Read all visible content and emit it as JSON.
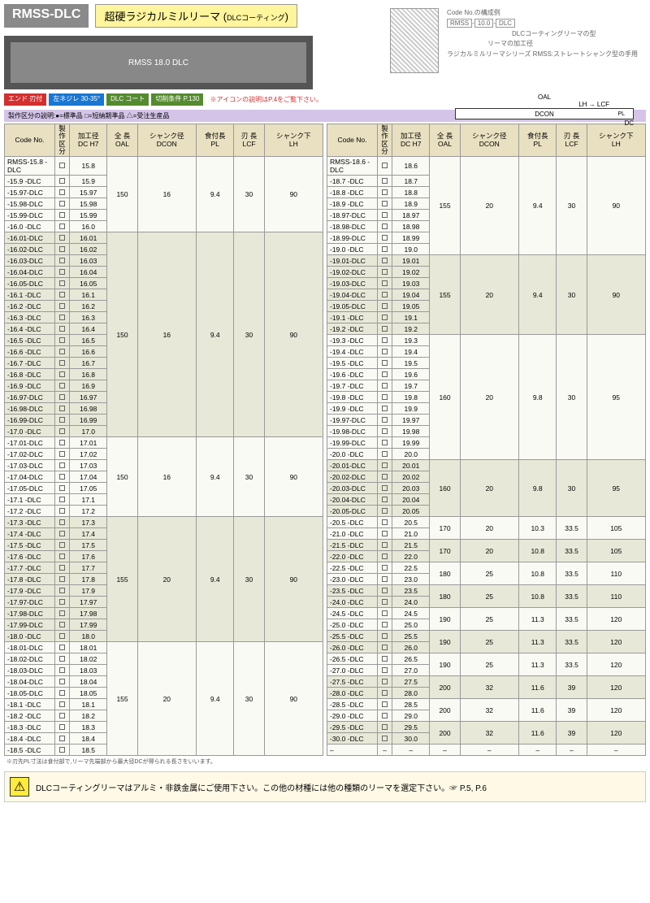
{
  "header": {
    "code": "RMSS-DLC",
    "title": "超硬ラジカルミルリーマ",
    "coating": "DLCコーティング",
    "prod_label": "RMSS 18.0 DLC"
  },
  "diag": {
    "code_ex": "Code No.の構成例",
    "rmss": "RMSS",
    "size": "10.0",
    "dlc": "DLC",
    "n1": "DLCコーティングリーマの型",
    "n2": "リーマの加工径",
    "n3": "ラジカルミルリーマシリーズ RMSS:ストレートシャンク型の手用",
    "oal": "OAL",
    "dcon": "DCON",
    "pl": "PL",
    "dc": "DC",
    "lcf": "LCF",
    "lh": "LH"
  },
  "badges": {
    "b1": "エンド\n刃付",
    "b2": "左ネジレ\n30-35°",
    "b3": "DLC\nコート",
    "b4": "切削条件\nP.130",
    "note": "※アイコンの説明はP.4をご覧下さい。"
  },
  "legend": "製作区分の説明:●=標準品 □=短納期準品 △=受注生産品",
  "th": {
    "code": "Code No.",
    "kubun": "製作\n区分",
    "dc": "加工径\nDC H7",
    "oal": "全 長\nOAL",
    "dcon": "シャンク径\nDCON",
    "pl": "食付長\nPL",
    "lcf": "刃 長\nLCF",
    "lh": "シャンク下\nLH"
  },
  "left_groups": [
    {
      "vals": [
        "150",
        "16",
        "9.4",
        "30",
        "90"
      ],
      "rows": [
        [
          "RMSS-15.8 -DLC",
          "15.8"
        ],
        [
          "-15.9  -DLC",
          "15.9"
        ],
        [
          "-15.97-DLC",
          "15.97"
        ],
        [
          "-15.98-DLC",
          "15.98"
        ],
        [
          "-15.99-DLC",
          "15.99"
        ],
        [
          "-16.0  -DLC",
          "16.0"
        ]
      ]
    },
    {
      "vals": [
        "150",
        "16",
        "9.4",
        "30",
        "90"
      ],
      "rows": [
        [
          "-16.01-DLC",
          "16.01"
        ],
        [
          "-16.02-DLC",
          "16.02"
        ],
        [
          "-16.03-DLC",
          "16.03"
        ],
        [
          "-16.04-DLC",
          "16.04"
        ],
        [
          "-16.05-DLC",
          "16.05"
        ],
        [
          "-16.1  -DLC",
          "16.1"
        ],
        [
          "-16.2  -DLC",
          "16.2"
        ],
        [
          "-16.3  -DLC",
          "16.3"
        ],
        [
          "-16.4  -DLC",
          "16.4"
        ],
        [
          "-16.5  -DLC",
          "16.5"
        ],
        [
          "-16.6  -DLC",
          "16.6"
        ],
        [
          "-16.7  -DLC",
          "16.7"
        ],
        [
          "-16.8  -DLC",
          "16.8"
        ],
        [
          "-16.9  -DLC",
          "16.9"
        ],
        [
          "-16.97-DLC",
          "16.97"
        ],
        [
          "-16.98-DLC",
          "16.98"
        ],
        [
          "-16.99-DLC",
          "16.99"
        ],
        [
          "-17.0  -DLC",
          "17.0"
        ]
      ]
    },
    {
      "vals": [
        "150",
        "16",
        "9.4",
        "30",
        "90"
      ],
      "rows": [
        [
          "-17.01-DLC",
          "17.01"
        ],
        [
          "-17.02-DLC",
          "17.02"
        ],
        [
          "-17.03-DLC",
          "17.03"
        ],
        [
          "-17.04-DLC",
          "17.04"
        ],
        [
          "-17.05-DLC",
          "17.05"
        ],
        [
          "-17.1  -DLC",
          "17.1"
        ],
        [
          "-17.2  -DLC",
          "17.2"
        ]
      ]
    },
    {
      "vals": [
        "155",
        "20",
        "9.4",
        "30",
        "90"
      ],
      "rows": [
        [
          "-17.3  -DLC",
          "17.3"
        ],
        [
          "-17.4  -DLC",
          "17.4"
        ],
        [
          "-17.5  -DLC",
          "17.5"
        ],
        [
          "-17.6  -DLC",
          "17.6"
        ],
        [
          "-17.7  -DLC",
          "17.7"
        ],
        [
          "-17.8  -DLC",
          "17.8"
        ],
        [
          "-17.9  -DLC",
          "17.9"
        ],
        [
          "-17.97-DLC",
          "17.97"
        ],
        [
          "-17.98-DLC",
          "17.98"
        ],
        [
          "-17.99-DLC",
          "17.99"
        ],
        [
          "-18.0  -DLC",
          "18.0"
        ]
      ]
    },
    {
      "vals": [
        "155",
        "20",
        "9.4",
        "30",
        "90"
      ],
      "rows": [
        [
          "-18.01-DLC",
          "18.01"
        ],
        [
          "-18.02-DLC",
          "18.02"
        ],
        [
          "-18.03-DLC",
          "18.03"
        ],
        [
          "-18.04-DLC",
          "18.04"
        ],
        [
          "-18.05-DLC",
          "18.05"
        ],
        [
          "-18.1  -DLC",
          "18.1"
        ],
        [
          "-18.2  -DLC",
          "18.2"
        ],
        [
          "-18.3  -DLC",
          "18.3"
        ],
        [
          "-18.4  -DLC",
          "18.4"
        ],
        [
          "-18.5  -DLC",
          "18.5"
        ]
      ]
    }
  ],
  "right_groups": [
    {
      "vals": [
        "155",
        "20",
        "9.4",
        "30",
        "90"
      ],
      "rows": [
        [
          "RMSS-18.6 -DLC",
          "18.6"
        ],
        [
          "-18.7  -DLC",
          "18.7"
        ],
        [
          "-18.8  -DLC",
          "18.8"
        ],
        [
          "-18.9  -DLC",
          "18.9"
        ],
        [
          "-18.97-DLC",
          "18.97"
        ],
        [
          "-18.98-DLC",
          "18.98"
        ],
        [
          "-18.99-DLC",
          "18.99"
        ],
        [
          "-19.0  -DLC",
          "19.0"
        ]
      ]
    },
    {
      "vals": [
        "155",
        "20",
        "9.4",
        "30",
        "90"
      ],
      "rows": [
        [
          "-19.01-DLC",
          "19.01"
        ],
        [
          "-19.02-DLC",
          "19.02"
        ],
        [
          "-19.03-DLC",
          "19.03"
        ],
        [
          "-19.04-DLC",
          "19.04"
        ],
        [
          "-19.05-DLC",
          "19.05"
        ],
        [
          "-19.1  -DLC",
          "19.1"
        ],
        [
          "-19.2  -DLC",
          "19.2"
        ]
      ]
    },
    {
      "vals": [
        "160",
        "20",
        "9.8",
        "30",
        "95"
      ],
      "rows": [
        [
          "-19.3  -DLC",
          "19.3"
        ],
        [
          "-19.4  -DLC",
          "19.4"
        ],
        [
          "-19.5  -DLC",
          "19.5"
        ],
        [
          "-19.6  -DLC",
          "19.6"
        ],
        [
          "-19.7  -DLC",
          "19.7"
        ],
        [
          "-19.8  -DLC",
          "19.8"
        ],
        [
          "-19.9  -DLC",
          "19.9"
        ],
        [
          "-19.97-DLC",
          "19.97"
        ],
        [
          "-19.98-DLC",
          "19.98"
        ],
        [
          "-19.99-DLC",
          "19.99"
        ],
        [
          "-20.0  -DLC",
          "20.0"
        ]
      ]
    },
    {
      "vals": [
        "160",
        "20",
        "9.8",
        "30",
        "95"
      ],
      "rows": [
        [
          "-20.01-DLC",
          "20.01"
        ],
        [
          "-20.02-DLC",
          "20.02"
        ],
        [
          "-20.03-DLC",
          "20.03"
        ],
        [
          "-20.04-DLC",
          "20.04"
        ],
        [
          "-20.05-DLC",
          "20.05"
        ]
      ]
    },
    {
      "vals": [
        "170",
        "20",
        "10.3",
        "33.5",
        "105"
      ],
      "rows": [
        [
          "-20.5  -DLC",
          "20.5"
        ],
        [
          "-21.0  -DLC",
          "21.0"
        ]
      ]
    },
    {
      "vals": [
        "170",
        "20",
        "10.8",
        "33.5",
        "105"
      ],
      "rows": [
        [
          "-21.5  -DLC",
          "21.5"
        ],
        [
          "-22.0  -DLC",
          "22.0"
        ]
      ]
    },
    {
      "vals": [
        "180",
        "25",
        "10.8",
        "33.5",
        "110"
      ],
      "rows": [
        [
          "-22.5  -DLC",
          "22.5"
        ],
        [
          "-23.0  -DLC",
          "23.0"
        ]
      ]
    },
    {
      "vals": [
        "180",
        "25",
        "10.8",
        "33.5",
        "110"
      ],
      "rows": [
        [
          "-23.5  -DLC",
          "23.5"
        ],
        [
          "-24.0  -DLC",
          "24.0"
        ]
      ]
    },
    {
      "vals": [
        "190",
        "25",
        "11.3",
        "33.5",
        "120"
      ],
      "rows": [
        [
          "-24.5  -DLC",
          "24.5"
        ],
        [
          "-25.0  -DLC",
          "25.0"
        ]
      ]
    },
    {
      "vals": [
        "190",
        "25",
        "11.3",
        "33.5",
        "120"
      ],
      "rows": [
        [
          "-25.5  -DLC",
          "25.5"
        ],
        [
          "-26.0  -DLC",
          "26.0"
        ]
      ]
    },
    {
      "vals": [
        "190",
        "25",
        "11.3",
        "33.5",
        "120"
      ],
      "rows": [
        [
          "-26.5  -DLC",
          "26.5"
        ],
        [
          "-27.0  -DLC",
          "27.0"
        ]
      ]
    },
    {
      "vals": [
        "200",
        "32",
        "11.6",
        "39",
        "120"
      ],
      "rows": [
        [
          "-27.5  -DLC",
          "27.5"
        ],
        [
          "-28.0  -DLC",
          "28.0"
        ]
      ]
    },
    {
      "vals": [
        "200",
        "32",
        "11.6",
        "39",
        "120"
      ],
      "rows": [
        [
          "-28.5  -DLC",
          "28.5"
        ],
        [
          "-29.0  -DLC",
          "29.0"
        ]
      ]
    },
    {
      "vals": [
        "200",
        "32",
        "11.6",
        "39",
        "120"
      ],
      "rows": [
        [
          "-29.5  -DLC",
          "29.5"
        ],
        [
          "-30.0  -DLC",
          "30.0"
        ]
      ]
    },
    {
      "vals": [
        "–",
        "–",
        "–",
        "–",
        "–"
      ],
      "rows": [
        [
          "–",
          "–"
        ]
      ]
    }
  ],
  "footnote": "※刃先PL寸法は食付部で,リーマ先端部から最大径DCが得られる長さをいいます。",
  "footer": {
    "text": "DLCコーティングリーマはアルミ・非鉄金属にご使用下さい。この他の材種には他の種類のリーマを選定下さい。☞ P.5, P.6"
  }
}
